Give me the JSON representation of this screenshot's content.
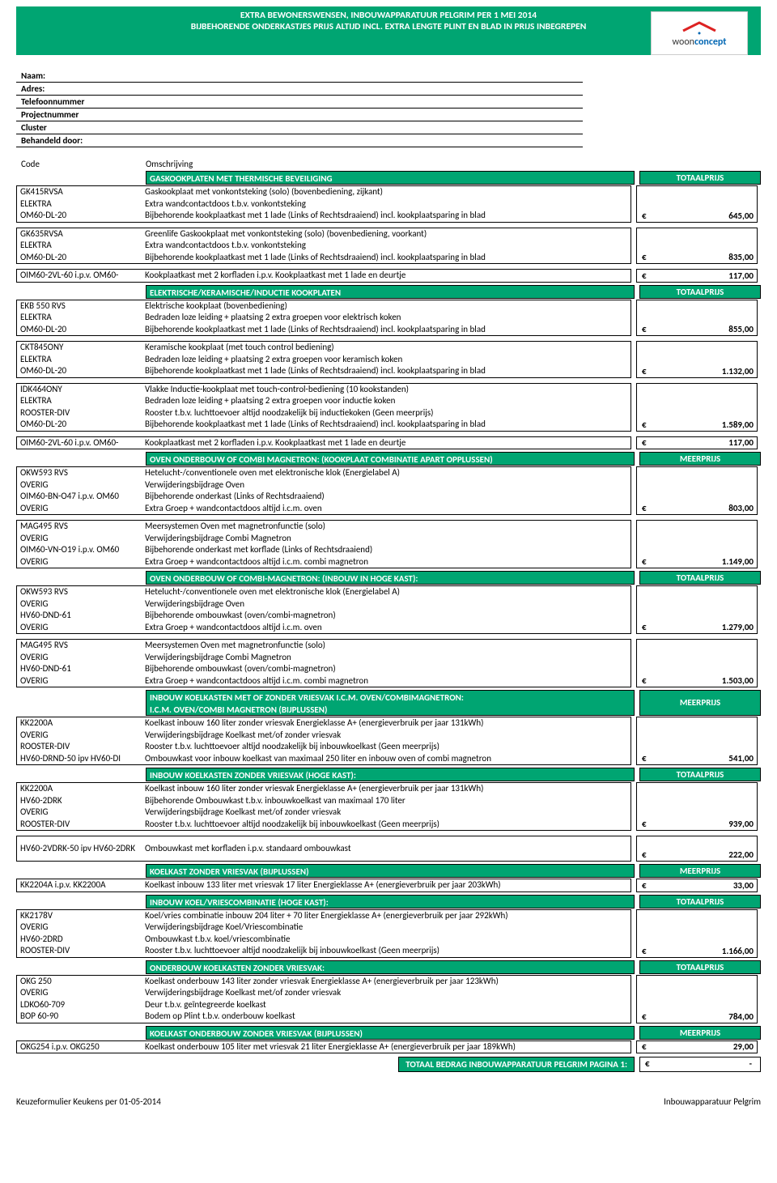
{
  "colors": {
    "green": "#00a572",
    "border": "#000000",
    "bg": "#ffffff"
  },
  "header": {
    "line1": "EXTRA BEWONERSWENSEN, INBOUWAPPARATUUR PELGRIM PER 1 MEI 2014",
    "line2": "BIJBEHORENDE ONDERKASTJES PRIJS ALTIJD INCL. EXTRA LENGTE PLINT EN BLAD IN PRIJS INBEGREPEN",
    "logo_word1": "woon",
    "logo_word2": "concept"
  },
  "form": {
    "labels": [
      "Naam:",
      "Adres:",
      "Telefoonnummer",
      "Projectnummer",
      "Cluster",
      "Behandeld door:"
    ]
  },
  "col_headers": {
    "code": "Code",
    "desc": "Omschrijving"
  },
  "price_labels": {
    "total": "TOTAALPRIJS",
    "meer": "MEERPRIJS"
  },
  "euro": "€",
  "sections": [
    {
      "title": "GASKOOKPLATEN MET THERMISCHE BEVEILIGING",
      "price_label": "TOTAALPRIJS",
      "indent": true,
      "blocks": [
        {
          "lines": [
            {
              "code": "GK415RVSA",
              "desc": "Gaskookplaat met vonkontsteking (solo) (bovenbediening, zijkant)"
            },
            {
              "code": "ELEKTRA",
              "desc": "Extra wandcontactdoos t.b.v. vonkontsteking"
            },
            {
              "code": "OM60-DL-20",
              "desc": "Bijbehorende kookplaatkast met 1 lade (Links of Rechtsdraaiend) incl. kookplaatsparing in blad"
            }
          ],
          "price": "645,00"
        },
        {
          "lines": [
            {
              "code": "GK635RVSA",
              "desc": "Greenlife Gaskookplaat met vonkontsteking (solo) (bovenbediening, voorkant)"
            },
            {
              "code": "ELEKTRA",
              "desc": "Extra wandcontactdoos t.b.v. vonkontsteking"
            },
            {
              "code": "OM60-DL-20",
              "desc": "Bijbehorende kookplaatkast met 1 lade (Links of Rechtsdraaiend) incl. kookplaatsparing in blad"
            }
          ],
          "price": "835,00"
        },
        {
          "lines": [
            {
              "code": "OIM60-2VL-60 i.p.v. OM60-",
              "desc": "Kookplaatkast met 2 korfladen i.p.v. Kookplaatkast met 1 lade en deurtje"
            }
          ],
          "price": "117,00"
        }
      ]
    },
    {
      "title": "ELEKTRISCHE/KERAMISCHE/INDUCTIE KOOKPLATEN",
      "price_label": "TOTAALPRIJS",
      "indent": true,
      "blocks": [
        {
          "lines": [
            {
              "code": "EKB 550 RVS",
              "desc": "Elektrische kookplaat (bovenbediening)"
            },
            {
              "code": "ELEKTRA",
              "desc": "Bedraden loze leiding + plaatsing 2 extra groepen voor elektrisch koken"
            },
            {
              "code": "OM60-DL-20",
              "desc": "Bijbehorende kookplaatkast met 1 lade (Links of Rechtsdraaiend) incl. kookplaatsparing in blad"
            }
          ],
          "price": "855,00"
        },
        {
          "lines": [
            {
              "code": "CKT845ONY",
              "desc": "Keramische kookplaat (met touch control bediening)"
            },
            {
              "code": "ELEKTRA",
              "desc": "Bedraden loze leiding + plaatsing 2 extra groepen voor keramisch koken"
            },
            {
              "code": "OM60-DL-20",
              "desc": "Bijbehorende kookplaatkast met 1 lade (Links of Rechtsdraaiend) incl. kookplaatsparing in blad"
            }
          ],
          "price": "1.132,00"
        },
        {
          "lines": [
            {
              "code": "IDK464ONY",
              "desc": "Vlakke Inductie-kookplaat met touch-control-bediening (10 kookstanden)"
            },
            {
              "code": "ELEKTRA",
              "desc": "Bedraden loze leiding + plaatsing 2 extra groepen voor inductie koken"
            },
            {
              "code": "ROOSTER-DIV",
              "desc": "Rooster t.b.v. luchttoevoer altijd noodzakelijk bij inductiekoken (Geen meerprijs)"
            },
            {
              "code": "OM60-DL-20",
              "desc": "Bijbehorende kookplaatkast met 1 lade (Links of Rechtsdraaiend) incl. kookplaatsparing in blad"
            }
          ],
          "price": "1.589,00"
        },
        {
          "lines": [
            {
              "code": "OIM60-2VL-60 i.p.v. OM60-",
              "desc": "Kookplaatkast met 2 korfladen i.p.v. Kookplaatkast met 1 lade en deurtje"
            }
          ],
          "price": "117,00"
        }
      ]
    },
    {
      "title": "OVEN ONDERBOUW OF COMBI MAGNETRON: (KOOKPLAAT COMBINATIE APART OPPLUSSEN)",
      "price_label": "MEERPRIJS",
      "indent": true,
      "blocks": [
        {
          "lines": [
            {
              "code": "OKW593 RVS",
              "desc": "Hetelucht-/conventionele oven met elektronische klok (Energielabel A)"
            },
            {
              "code": "OVERIG",
              "desc": "Verwijderingsbijdrage Oven"
            },
            {
              "code": "OIM60-BN-O47 i.p.v. OM60",
              "desc": "Bijbehorende onderkast (Links of Rechtsdraaiend)"
            },
            {
              "code": "OVERIG",
              "desc": "Extra Groep + wandcontactdoos altijd i.c.m. oven"
            }
          ],
          "price": "803,00"
        },
        {
          "lines": [
            {
              "code": "MAG495 RVS",
              "desc": "Meersystemen Oven met magnetronfunctie (solo)"
            },
            {
              "code": "OVERIG",
              "desc": "Verwijderingsbijdrage Combi Magnetron"
            },
            {
              "code": "OIM60-VN-O19 i.p.v. OM60",
              "desc": "Bijbehorende onderkast met korflade (Links of Rechtsdraaiend)"
            },
            {
              "code": "OVERIG",
              "desc": "Extra Groep + wandcontactdoos altijd i.c.m. combi magnetron"
            }
          ],
          "price": "1.149,00"
        }
      ]
    },
    {
      "title": "OVEN ONDERBOUW OF COMBI-MAGNETRON: (INBOUW IN HOGE KAST):",
      "price_label": "TOTAALPRIJS",
      "indent": true,
      "blocks": [
        {
          "lines": [
            {
              "code": "OKW593 RVS",
              "desc": "Hetelucht-/conventionele oven met elektronische klok (Energielabel A)"
            },
            {
              "code": "OVERIG",
              "desc": "Verwijderingsbijdrage Oven"
            },
            {
              "code": "HV60-DND-61",
              "desc": "Bijbehorende ombouwkast (oven/combi-magnetron)"
            },
            {
              "code": "OVERIG",
              "desc": "Extra Groep + wandcontactdoos altijd i.c.m. oven"
            }
          ],
          "price": "1.279,00"
        },
        {
          "lines": [
            {
              "code": "MAG495 RVS",
              "desc": "Meersystemen Oven met magnetronfunctie (solo)"
            },
            {
              "code": "OVERIG",
              "desc": "Verwijderingsbijdrage Combi Magnetron"
            },
            {
              "code": "HV60-DND-61",
              "desc": "Bijbehorende ombouwkast (oven/combi-magnetron)"
            },
            {
              "code": "OVERIG",
              "desc": "Extra Groep + wandcontactdoos altijd i.c.m. combi magnetron"
            }
          ],
          "price": "1.503,00"
        }
      ]
    },
    {
      "title": "INBOUW KOELKASTEN MET OF ZONDER VRIESVAK I.C.M. OVEN/COMBIMAGNETRON:",
      "title2": "I.C.M. OVEN/COMBI MAGNETRON (BIJPLUSSEN)",
      "price_label": "MEERPRIJS",
      "indent": true,
      "twoline": true,
      "blocks": [
        {
          "lines": [
            {
              "code": "KK2200A",
              "desc": "Koelkast inbouw 160 liter zonder vriesvak Energieklasse A+ (energieverbruik per jaar 131kWh)"
            },
            {
              "code": "OVERIG",
              "desc": "Verwijderingsbijdrage Koelkast met/of zonder vriesvak"
            },
            {
              "code": "ROOSTER-DIV",
              "desc": "Rooster t.b.v. luchttoevoer altijd noodzakelijk bij inbouwkoelkast (Geen meerprijs)"
            },
            {
              "code": "HV60-DRND-50 ipv HV60-DI",
              "desc": "Ombouwkast voor inbouw koelkast van maximaal 250 liter en inbouw oven of combi magnetron"
            }
          ],
          "price": "541,00"
        }
      ]
    },
    {
      "title": "INBOUW KOELKASTEN ZONDER VRIESVAK (HOGE KAST):",
      "price_label": "TOTAALPRIJS",
      "indent": true,
      "blocks": [
        {
          "lines": [
            {
              "code": "KK2200A",
              "desc": "Koelkast inbouw 160 liter zonder vriesvak Energieklasse A+ (energieverbruik per jaar 131kWh)"
            },
            {
              "code": "HV60-2DRK",
              "desc": "Bijbehorende Ombouwkast t.b.v. inbouwkoelkast van maximaal 170 liter"
            },
            {
              "code": "OVERIG",
              "desc": "Verwijderingsbijdrage Koelkast met/of zonder vriesvak"
            },
            {
              "code": "ROOSTER-DIV",
              "desc": "Rooster t.b.v. luchttoevoer altijd noodzakelijk bij inbouwkoelkast (Geen meerprijs)"
            }
          ],
          "price": "939,00"
        },
        {
          "lines": [
            {
              "code": "HV60-2VDRK-50 ipv HV60-2DRK",
              "desc": "Ombouwkast met korfladen i.p.v. standaard ombouwkast"
            }
          ],
          "price": "222,00",
          "tall": true
        }
      ]
    },
    {
      "title": "KOELKAST ZONDER VRIESVAK (BIJPLUSSEN)",
      "price_label": "MEERPRIJS",
      "indent": true,
      "blocks": [
        {
          "lines": [
            {
              "code": "KK2204A i.p.v. KK2200A",
              "desc": "Koelkast inbouw 133 liter met vriesvak 17 liter  Energieklasse A+ (energieverbruik per jaar 203kWh)"
            }
          ],
          "price": "33,00"
        }
      ]
    },
    {
      "title": "INBOUW KOEL/VRIESCOMBINATIE (HOGE KAST):",
      "price_label": "TOTAALPRIJS",
      "indent": true,
      "blocks": [
        {
          "lines": [
            {
              "code": "KK2178V",
              "desc": "Koel/vries combinatie inbouw 204 liter + 70 liter Energieklasse A+ (energieverbruik per jaar 292kWh)"
            },
            {
              "code": "OVERIG",
              "desc": "Verwijderingsbijdrage Koel/Vriescombinatie"
            },
            {
              "code": "HV60-2DRD",
              "desc": "Ombouwkast t.b.v. koel/vriescombinatie"
            },
            {
              "code": "ROOSTER-DIV",
              "desc": "Rooster t.b.v. luchttoevoer altijd noodzakelijk bij inbouwkoelkast (Geen meerprijs)"
            }
          ],
          "price": "1.166,00"
        }
      ]
    },
    {
      "title": "ONDERBOUW KOELKASTEN ZONDER VRIESVAK:",
      "price_label": "TOTAALPRIJS",
      "indent": true,
      "blocks": [
        {
          "lines": [
            {
              "code": "OKG 250",
              "desc": "Koelkast onderbouw 143 liter zonder vriesvak Energieklasse A+ (energieverbruik per jaar 123kWh)"
            },
            {
              "code": "OVERIG",
              "desc": "Verwijderingsbijdrage Koelkast met/of zonder vriesvak"
            },
            {
              "code": "LDKO60-709",
              "desc": "Deur t.b.v. geïntegreerde koelkast"
            },
            {
              "code": "BOP 60-90",
              "desc": "Bodem op Plint t.b.v. onderbouw koelkast"
            }
          ],
          "price": "784,00"
        }
      ]
    },
    {
      "title": "KOELKAST ONDERBOUW ZONDER VRIESVAK (BIJPLUSSEN)",
      "price_label": "MEERPRIJS",
      "indent": true,
      "blocks": [
        {
          "lines": [
            {
              "code": "OKG254 i.p.v. OKG250",
              "desc": "Koelkast onderbouw 105 liter met vriesvak 21 liter Energieklasse A+ (energieverbruik per jaar 189kWh)"
            }
          ],
          "price": "29,00"
        }
      ]
    }
  ],
  "footer_total": {
    "label": "TOTAAL BEDRAG INBOUWAPPARATUUR PELGRIM PAGINA 1:",
    "amount": "-"
  },
  "page_footer": {
    "left": "Keuzeformulier Keukens per 01-05-2014",
    "right": "Inbouwapparatuur Pelgrim"
  }
}
